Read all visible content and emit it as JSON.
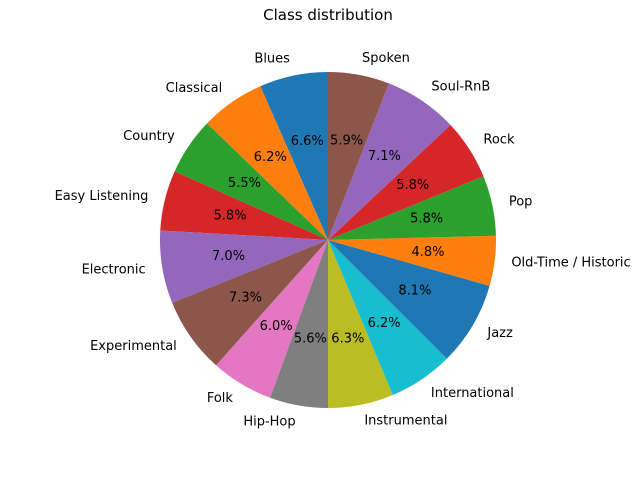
{
  "chart_data": {
    "type": "pie",
    "title": "Class distribution",
    "start_angle_deg": 90,
    "direction": "counterclockwise",
    "categories": [
      "Blues",
      "Classical",
      "Country",
      "Easy Listening",
      "Electronic",
      "Experimental",
      "Folk",
      "Hip-Hop",
      "Instrumental",
      "International",
      "Jazz",
      "Old-Time / Historic",
      "Pop",
      "Rock",
      "Soul-RnB",
      "Spoken"
    ],
    "values": [
      6.6,
      6.2,
      5.5,
      5.8,
      7.0,
      7.3,
      6.0,
      5.6,
      6.3,
      6.2,
      8.1,
      4.8,
      5.8,
      5.8,
      7.1,
      5.9
    ],
    "value_labels": [
      "6.6%",
      "6.2%",
      "5.5%",
      "5.8%",
      "7.0%",
      "7.3%",
      "6.0%",
      "5.6%",
      "6.3%",
      "6.2%",
      "8.1%",
      "4.8%",
      "5.8%",
      "5.8%",
      "7.1%",
      "5.9%"
    ],
    "colors": [
      "#1f77b4",
      "#ff7f0e",
      "#2ca02c",
      "#d62728",
      "#9467bd",
      "#8c564b",
      "#e377c2",
      "#7f7f7f",
      "#bcbd22",
      "#17becf",
      "#1f77b4",
      "#ff7f0e",
      "#2ca02c",
      "#d62728",
      "#9467bd",
      "#8c564b"
    ]
  }
}
